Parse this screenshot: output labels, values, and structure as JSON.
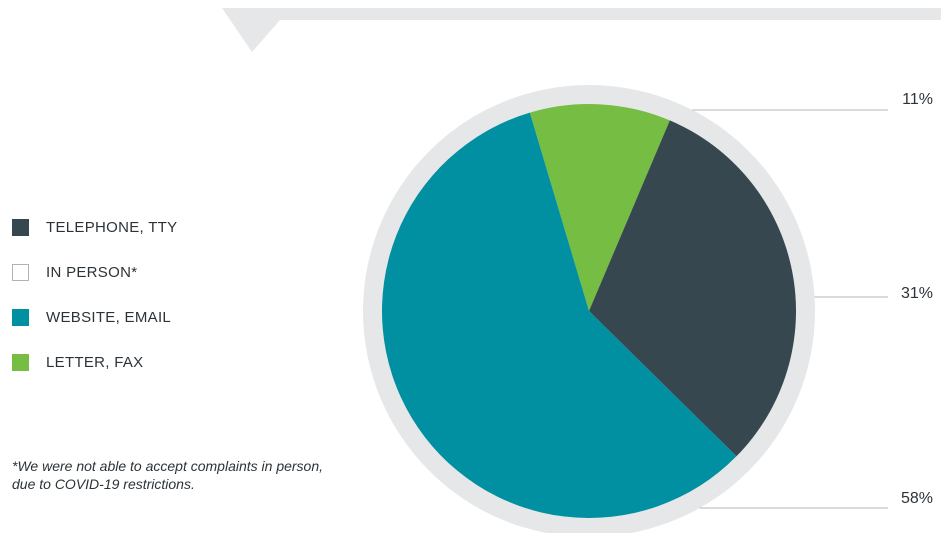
{
  "colors": {
    "telephone": "#36474f",
    "in_person": "#ffffff",
    "website": "#0090a1",
    "letter": "#76bd43",
    "ring": "#e6e7e8",
    "banner": "#e6e7e8",
    "leader": "#b0b4b7"
  },
  "legend": {
    "items": [
      {
        "label": "TELEPHONE, TTY",
        "color": "#36474f"
      },
      {
        "label": "IN PERSON*",
        "color": "#ffffff"
      },
      {
        "label": "WEBSITE, EMAIL",
        "color": "#0090a1"
      },
      {
        "label": "LETTER, FAX",
        "color": "#76bd43"
      }
    ]
  },
  "footnote": "*We were not able to accept complaints in person, due to COVID-19 restrictions.",
  "chart_data": {
    "type": "pie",
    "slices": [
      {
        "label": "LETTER, FAX",
        "value": 11,
        "display": "11%",
        "color": "#76bd43"
      },
      {
        "label": "TELEPHONE, TTY",
        "value": 31,
        "display": "31%",
        "color": "#36474f"
      },
      {
        "label": "WEBSITE, EMAIL",
        "value": 58,
        "display": "58%",
        "color": "#0090a1"
      }
    ],
    "legend_position": "left"
  }
}
